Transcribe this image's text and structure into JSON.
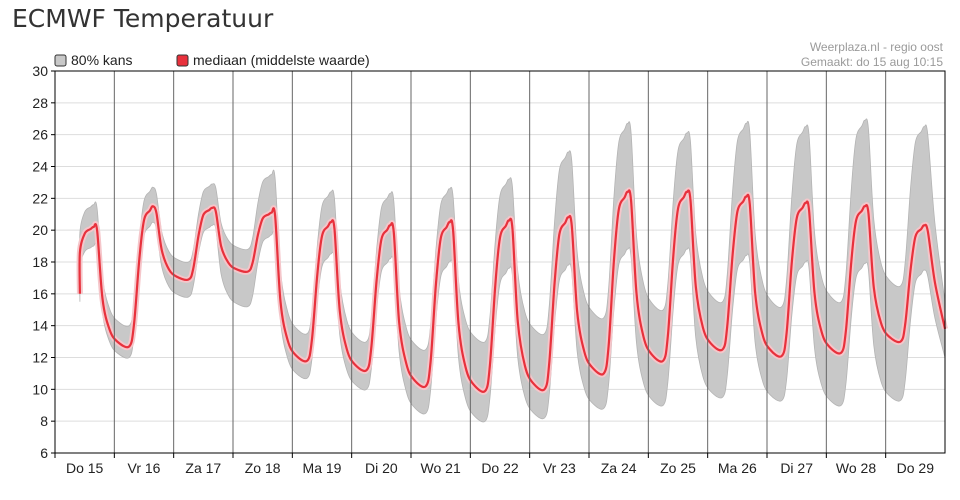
{
  "header": {
    "title": "ECMWF Temperatuur"
  },
  "source": {
    "line1": "Weerplaza.nl - regio oost",
    "line2": "Gemaakt: do 15 aug 10:15"
  },
  "colors": {
    "band": "#c8c8c8",
    "band_border": "#b4b4b4",
    "median": "#e8313c",
    "median_halo": "#f5c6ca",
    "grid": "#dddddd",
    "day_line": "#666666",
    "axis": "#000000"
  },
  "chart_data": {
    "type": "area",
    "grid": true,
    "legend_position": "top-left",
    "legend": [
      {
        "name": "80% kans",
        "swatch": "#c8c8c8"
      },
      {
        "name": "mediaan (middelste waarde)",
        "swatch": "#e8313c"
      }
    ],
    "y_ticks": [
      6,
      8,
      10,
      12,
      14,
      16,
      18,
      20,
      22,
      24,
      26,
      28,
      30
    ],
    "ylim": [
      6,
      30
    ],
    "x_days": [
      "Do 15",
      "Vr 16",
      "Za 17",
      "Zo 18",
      "Ma 19",
      "Di 20",
      "Wo 21",
      "Do 22",
      "Vr 23",
      "Za 24",
      "Zo 25",
      "Ma 26",
      "Di 27",
      "Wo 28",
      "Do 29"
    ],
    "daily_median_max": [
      20.2,
      21.5,
      21.4,
      21.1,
      20.5,
      20.3,
      20.5,
      20.6,
      20.8,
      22.4,
      22.4,
      22.1,
      21.7,
      21.5,
      20.3
    ],
    "daily_median_min": [
      16.0,
      12.7,
      16.9,
      17.4,
      11.8,
      11.2,
      10.2,
      9.9,
      10.0,
      11.0,
      11.8,
      12.5,
      12.1,
      12.3,
      13.0
    ],
    "median_end": 13.8,
    "band_upper_max": [
      21.6,
      22.7,
      22.9,
      23.5,
      22.4,
      22.3,
      22.6,
      23.2,
      24.9,
      26.7,
      26.1,
      26.7,
      26.5,
      26.9,
      26.5
    ],
    "band_upper_min": [
      17.0,
      14.0,
      18.0,
      18.8,
      13.5,
      13.0,
      12.5,
      13.0,
      13.5,
      14.5,
      15.0,
      15.5,
      15.2,
      15.5,
      16.5
    ],
    "band_lower_max": [
      19.0,
      20.5,
      20.3,
      19.7,
      18.5,
      18.2,
      18.0,
      17.6,
      17.8,
      18.8,
      18.8,
      18.4,
      18.0,
      17.9,
      17.5
    ],
    "band_lower_min": [
      15.5,
      12.0,
      15.8,
      15.2,
      10.7,
      10.0,
      8.5,
      8.0,
      8.2,
      8.8,
      9.0,
      9.5,
      9.3,
      9.0,
      9.3
    ],
    "band_upper_end": 15.5,
    "band_lower_end": 12.0
  }
}
